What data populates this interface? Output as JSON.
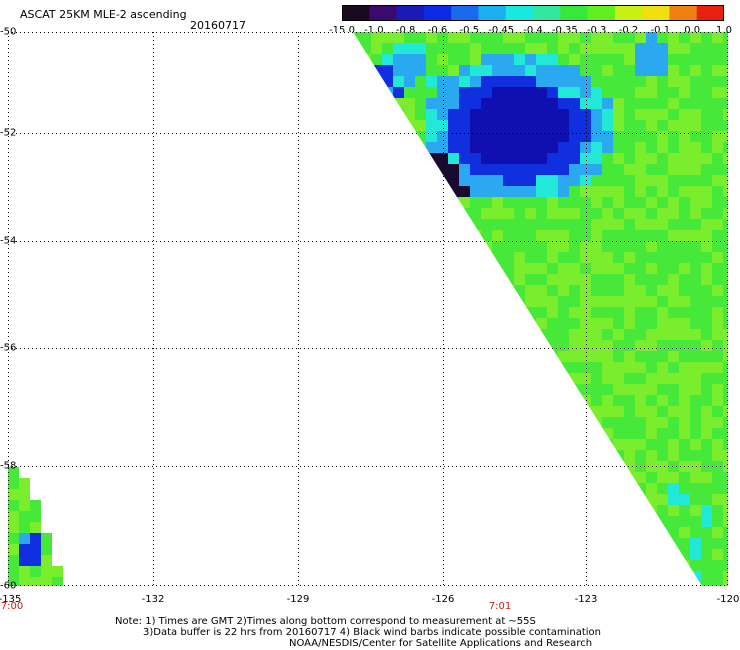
{
  "header": {
    "title": "ASCAT 25KM MLE-2 ascending",
    "date": "20160717"
  },
  "colorbar": {
    "labels": [
      "-15.0",
      "-1.0",
      "-0.8",
      "-0.6",
      "-0.5",
      "-0.45",
      "-0.4",
      "-0.35",
      "-0.3",
      "-0.2",
      "-0.1",
      "0.0",
      "1.0"
    ],
    "colors": [
      "#1a0a1e",
      "#3a0a6e",
      "#1a1ab8",
      "#0a2ae8",
      "#1a6aee",
      "#1ab0f0",
      "#18e8e0",
      "#30e8a0",
      "#38e838",
      "#60f020",
      "#c8f010",
      "#f0e010",
      "#f08010",
      "#e82010"
    ]
  },
  "map": {
    "lat_ticks": [
      "-50",
      "-52",
      "-54",
      "-56",
      "-58",
      "-60"
    ],
    "lon_ticks": [
      "-135",
      "-132",
      "-129",
      "-126",
      "-123",
      "-120"
    ],
    "time_labels": [
      "7:00",
      "7:01"
    ],
    "extent": {
      "lon_min": -135,
      "lon_max": -120,
      "lat_min": -60,
      "lat_max": -50
    },
    "swath_colors": {
      "base": "#46e83a",
      "light": "#7aee2c",
      "cyan": "#22e8d8",
      "sky": "#2aa8f0",
      "blue": "#1030e0",
      "deep": "#1010b0",
      "dark": "#1a0a30"
    }
  },
  "footer": {
    "note1": "Note: 1) Times are GMT 2)Times along bottom correspond to measurement at ~55S",
    "note2": "3)Data buffer is 22 hrs from 20160717 4) Black wind barbs indicate possible contamination",
    "credit": "NOAA/NESDIS/Center for Satellite Applications and Research"
  }
}
